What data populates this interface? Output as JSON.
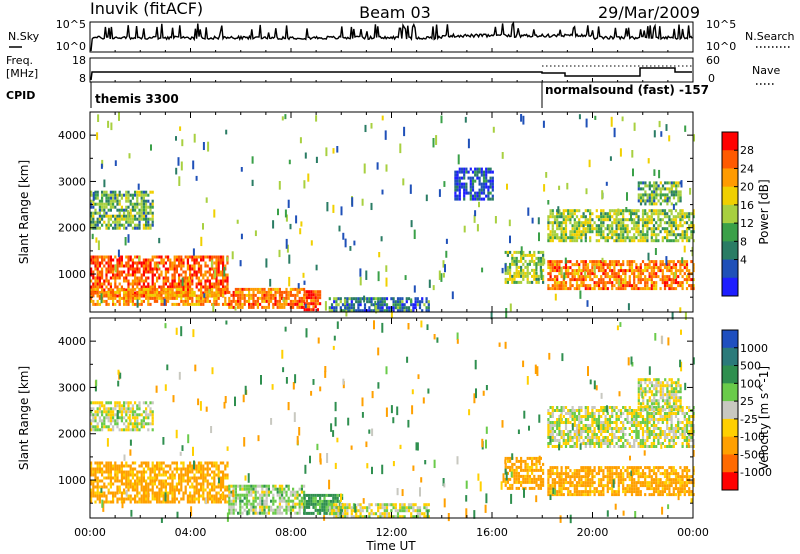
{
  "header": {
    "station": "Inuvik (fitACF)",
    "beam": "Beam 03",
    "date": "29/Mar/2009"
  },
  "noise_panel": {
    "left_label": "N.Sky",
    "right_label": "N.Search",
    "left_ticks": [
      "10^5",
      "10^0"
    ],
    "right_ticks": [
      "10^5",
      "10^0"
    ]
  },
  "freq_panel": {
    "left_label_1": "Freq.",
    "left_label_2": "[MHz]",
    "left_ticks": [
      "18",
      "8"
    ],
    "right_label": "Nave",
    "right_ticks": [
      "60",
      "0"
    ],
    "cpid_label": "CPID",
    "cpid_1": "themis 3300",
    "cpid_2": "normalsound (fast) -157"
  },
  "axes": {
    "ylabel": "Slant Range [km]",
    "yticks": [
      "4000",
      "3000",
      "2000",
      "1000"
    ],
    "xlabel": "Time UT",
    "xticks": [
      "00:00",
      "04:00",
      "08:00",
      "12:00",
      "16:00",
      "20:00",
      "00:00"
    ]
  },
  "power_colorbar": {
    "label": "Power [dB]",
    "ticks": [
      "28",
      "24",
      "20",
      "16",
      "12",
      "8",
      "4"
    ],
    "colors": [
      "#ff0000",
      "#ff5a00",
      "#ff9b00",
      "#f0d000",
      "#a8d040",
      "#3aa048",
      "#2a7c64",
      "#1f50b8",
      "#1e1eff"
    ]
  },
  "velocity_colorbar": {
    "label": "Velocity [m s^-1]",
    "ticks": [
      "1000",
      "500",
      "100",
      "25",
      "-25",
      "-100",
      "-500",
      "-1000"
    ],
    "colors": [
      "#1f4fbf",
      "#2b7a7a",
      "#2f8f4f",
      "#6acb4a",
      "#c8c8c0",
      "#ffd000",
      "#ffa000",
      "#ff6a00",
      "#ff0000"
    ]
  },
  "chart_data": {
    "type": "heatmap",
    "time_range_hours": [
      0,
      24
    ],
    "slant_range_km": [
      180,
      4500
    ],
    "panels": [
      {
        "quantity": "Power",
        "units": "dB",
        "regions": [
          {
            "t": [
              0.0,
              5.5
            ],
            "r": [
              500,
              1400
            ],
            "value": 26
          },
          {
            "t": [
              0.0,
              5.5
            ],
            "r": [
              350,
              700
            ],
            "value": 22
          },
          {
            "t": [
              5.5,
              8.5
            ],
            "r": [
              300,
              700
            ],
            "value": 24
          },
          {
            "t": [
              8.5,
              9.2
            ],
            "r": [
              250,
              650
            ],
            "value": 28
          },
          {
            "t": [
              9.5,
              13.5
            ],
            "r": [
              200,
              500
            ],
            "value": 8
          },
          {
            "t": [
              0.0,
              2.5
            ],
            "r": [
              2000,
              2800
            ],
            "value": 12
          },
          {
            "t": [
              14.5,
              16.0
            ],
            "r": [
              2600,
              3300
            ],
            "value": 6
          },
          {
            "t": [
              16.5,
              18.0
            ],
            "r": [
              800,
              1500
            ],
            "value": 14
          },
          {
            "t": [
              18.2,
              24.0
            ],
            "r": [
              700,
              1300
            ],
            "value": 24
          },
          {
            "t": [
              18.2,
              24.0
            ],
            "r": [
              1700,
              2400
            ],
            "value": 14
          },
          {
            "t": [
              21.8,
              23.5
            ],
            "r": [
              2500,
              3000
            ],
            "value": 12
          }
        ]
      },
      {
        "quantity": "Velocity",
        "units": "m s^-1",
        "regions": [
          {
            "t": [
              0.0,
              5.5
            ],
            "r": [
              500,
              1400
            ],
            "value": -150
          },
          {
            "t": [
              5.5,
              8.5
            ],
            "r": [
              300,
              900
            ],
            "value": 40
          },
          {
            "t": [
              8.5,
              10.0
            ],
            "r": [
              250,
              700
            ],
            "value": 150
          },
          {
            "t": [
              9.5,
              13.5
            ],
            "r": [
              200,
              500
            ],
            "value": 0
          },
          {
            "t": [
              0.0,
              2.5
            ],
            "r": [
              2100,
              2700
            ],
            "value": 0
          },
          {
            "t": [
              16.5,
              18.0
            ],
            "r": [
              800,
              1500
            ],
            "value": -150
          },
          {
            "t": [
              18.2,
              24.0
            ],
            "r": [
              700,
              1300
            ],
            "value": -150
          },
          {
            "t": [
              18.2,
              24.0
            ],
            "r": [
              1700,
              2600
            ],
            "value": 0
          },
          {
            "t": [
              21.8,
              23.5
            ],
            "r": [
              2500,
              3200
            ],
            "value": 0
          }
        ]
      }
    ],
    "grid": false
  }
}
